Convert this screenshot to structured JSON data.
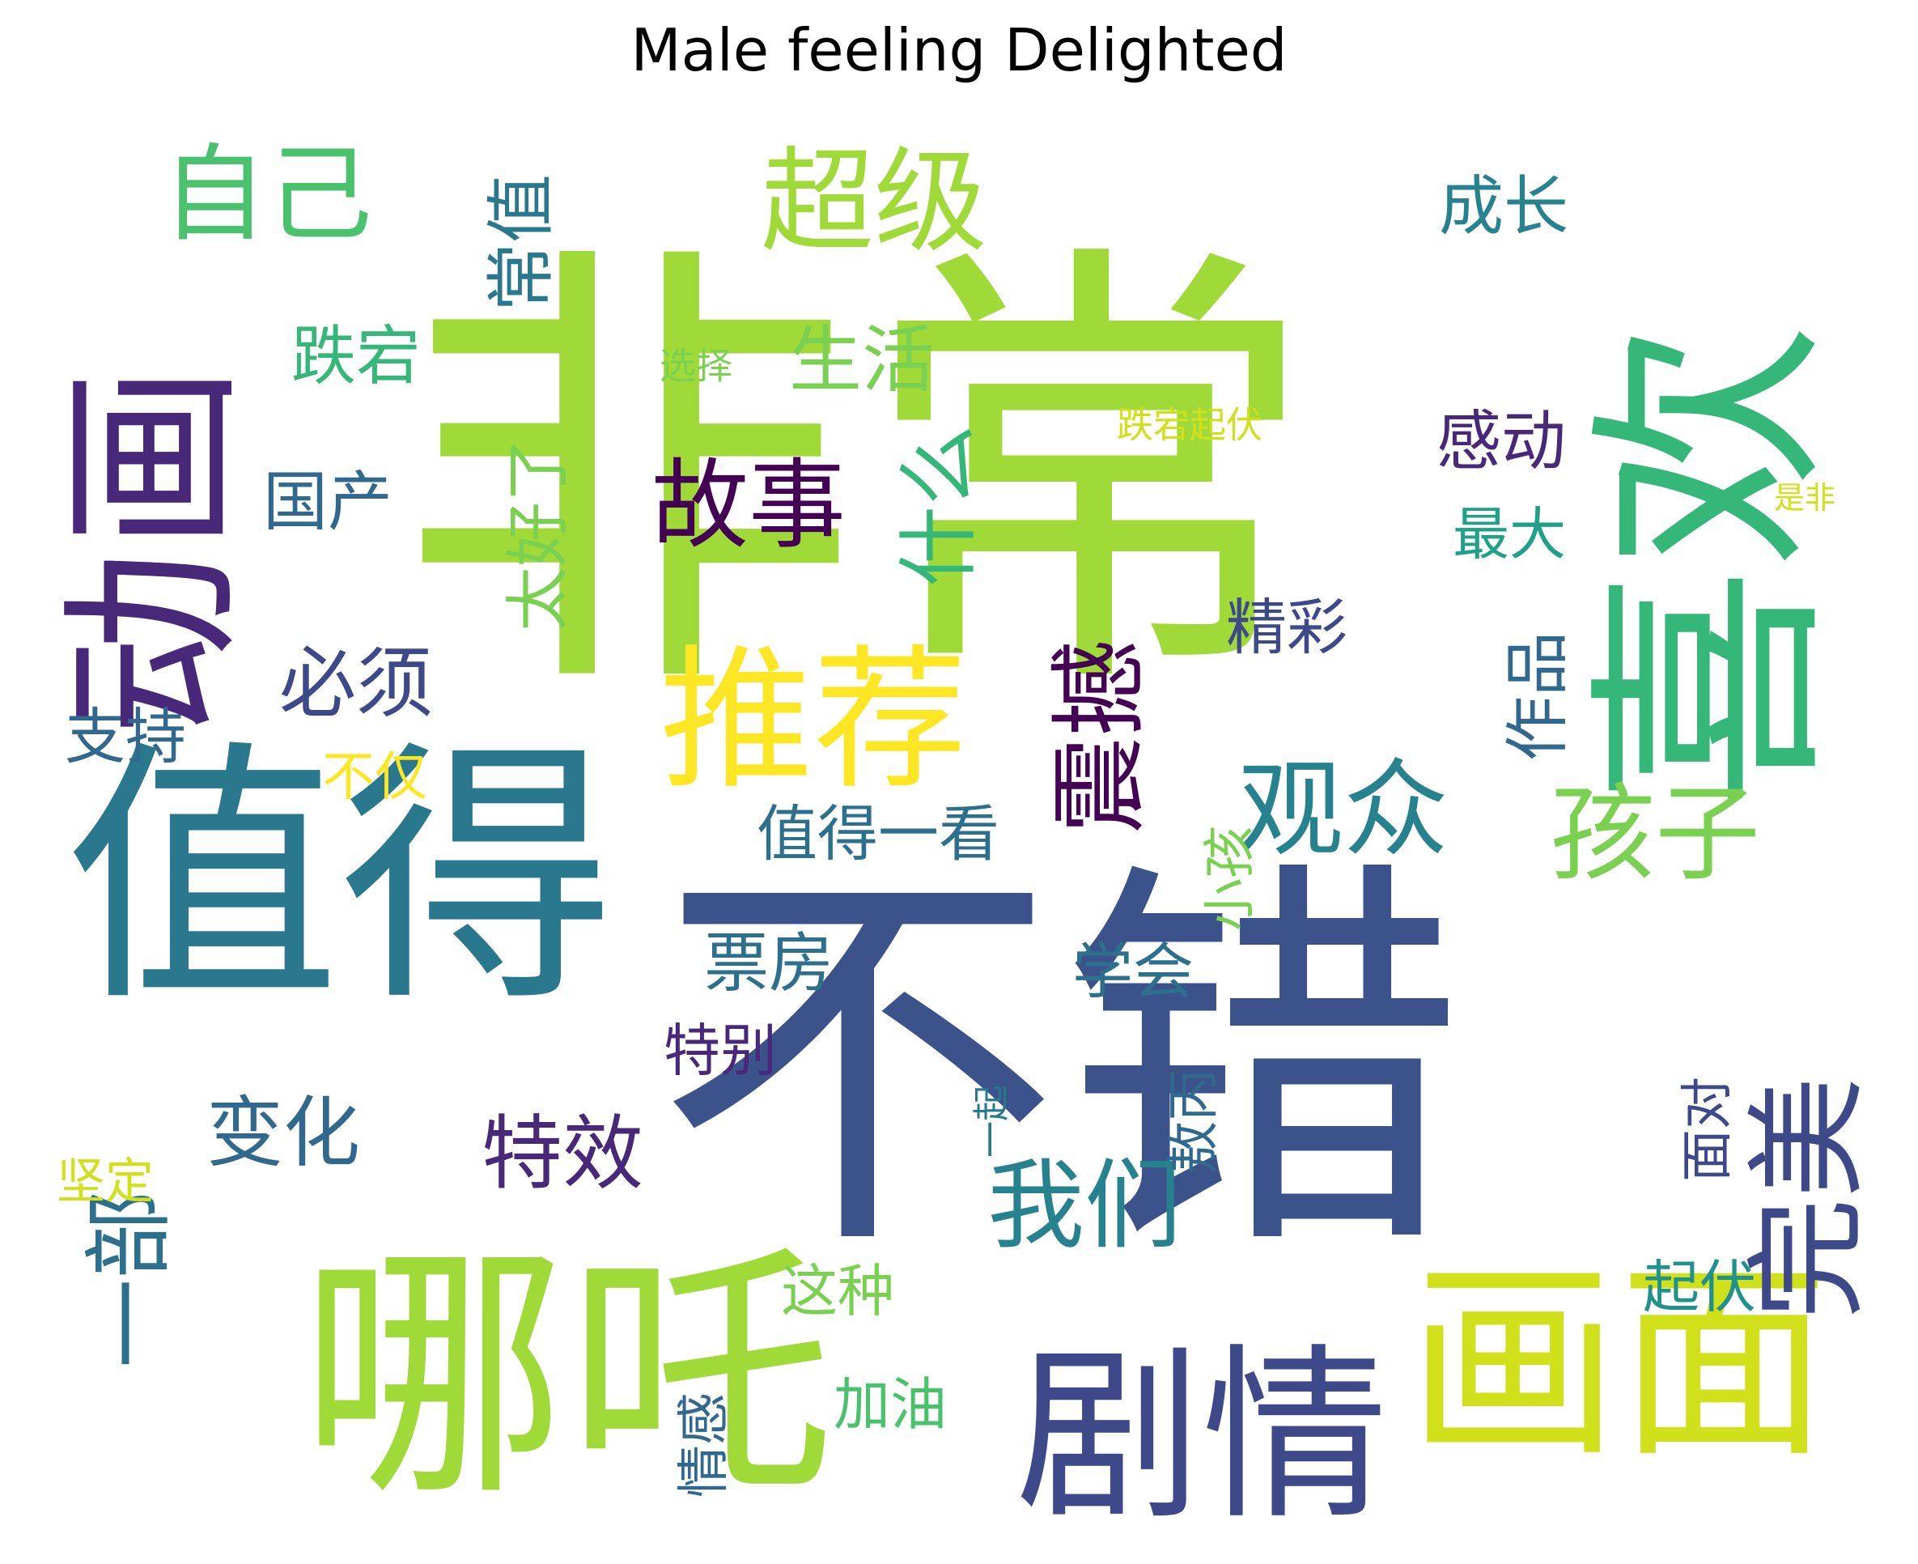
{
  "title": "Male feeling Delighted",
  "colors": {
    "c1": "#a0da39",
    "c2": "#3b528b",
    "c3": "#2a788e",
    "c4": "#440154",
    "c5": "#fde725",
    "c6": "#4ac16d",
    "c7": "#21918c",
    "c8": "#482878",
    "c9": "#31688e",
    "c10": "#d0e11c",
    "c11": "#7ad151",
    "c12": "#1fa187",
    "c13": "#3e4989",
    "c14": "#35b779",
    "c15": "#26828e",
    "c16": "#2d708e"
  },
  "words": [
    {
      "text": "非常",
      "color": "c1",
      "rotate": false
    },
    {
      "text": "不错",
      "color": "c2",
      "rotate": false
    },
    {
      "text": "喜欢",
      "color": "c14",
      "rotate": true
    },
    {
      "text": "值得",
      "color": "c3",
      "rotate": false
    },
    {
      "text": "哪吒",
      "color": "c1",
      "rotate": false
    },
    {
      "text": "动画",
      "color": "c8",
      "rotate": true
    },
    {
      "text": "剧情",
      "color": "c13",
      "rotate": false
    },
    {
      "text": "画面",
      "color": "c10",
      "rotate": false
    },
    {
      "text": "推荐",
      "color": "c5",
      "rotate": false
    },
    {
      "text": "超级",
      "color": "c1",
      "rotate": false
    },
    {
      "text": "自己",
      "color": "c6",
      "rotate": false
    },
    {
      "text": "观众",
      "color": "c15",
      "rotate": false
    },
    {
      "text": "孩子",
      "color": "c11",
      "rotate": false
    },
    {
      "text": "完美",
      "color": "c13",
      "rotate": true
    },
    {
      "text": "震撼",
      "color": "c4",
      "rotate": true
    },
    {
      "text": "故事",
      "color": "c4",
      "rotate": false
    },
    {
      "text": "我们",
      "color": "c15",
      "rotate": false
    },
    {
      "text": "变化",
      "color": "c9",
      "rotate": false
    },
    {
      "text": "特效",
      "color": "c8",
      "rotate": false
    },
    {
      "text": "一部",
      "color": "c16",
      "rotate": true
    },
    {
      "text": "必须",
      "color": "c13",
      "rotate": false
    },
    {
      "text": "生活",
      "color": "c11",
      "rotate": false
    },
    {
      "text": "什么",
      "color": "c14",
      "rotate": true
    },
    {
      "text": "常值",
      "color": "c3",
      "rotate": true
    },
    {
      "text": "跌宕",
      "color": "c14",
      "rotate": false
    },
    {
      "text": "成长",
      "color": "c15",
      "rotate": false
    },
    {
      "text": "感动",
      "color": "c8",
      "rotate": false
    },
    {
      "text": "国产",
      "color": "c9",
      "rotate": false
    },
    {
      "text": "太好了",
      "color": "c11",
      "rotate": true
    },
    {
      "text": "作品",
      "color": "c9",
      "rotate": true
    },
    {
      "text": "精彩",
      "color": "c13",
      "rotate": false
    },
    {
      "text": "最大",
      "color": "c12",
      "rotate": false
    },
    {
      "text": "支持",
      "color": "c9",
      "rotate": false
    },
    {
      "text": "不仅",
      "color": "c5",
      "rotate": false
    },
    {
      "text": "值得一看",
      "color": "c16",
      "rotate": false
    },
    {
      "text": "小孩",
      "color": "c11",
      "rotate": true
    },
    {
      "text": "票房",
      "color": "c16",
      "rotate": false
    },
    {
      "text": "学会",
      "color": "c16",
      "rotate": false
    },
    {
      "text": "特别",
      "color": "c8",
      "rotate": false
    },
    {
      "text": "敖丙",
      "color": "c9",
      "rotate": true
    },
    {
      "text": "面对",
      "color": "c13",
      "rotate": true
    },
    {
      "text": "起伏",
      "color": "c7",
      "rotate": false
    },
    {
      "text": "坚定",
      "color": "c10",
      "rotate": false
    },
    {
      "text": "这种",
      "color": "c11",
      "rotate": false
    },
    {
      "text": "加油",
      "color": "c6",
      "rotate": false
    },
    {
      "text": "情感",
      "color": "c9",
      "rotate": true
    },
    {
      "text": "一起",
      "color": "c3",
      "rotate": true
    },
    {
      "text": "选择",
      "color": "c11",
      "rotate": false
    },
    {
      "text": "跌宕起伏",
      "color": "c10",
      "rotate": false
    },
    {
      "text": "是非",
      "color": "c10",
      "rotate": false
    }
  ]
}
